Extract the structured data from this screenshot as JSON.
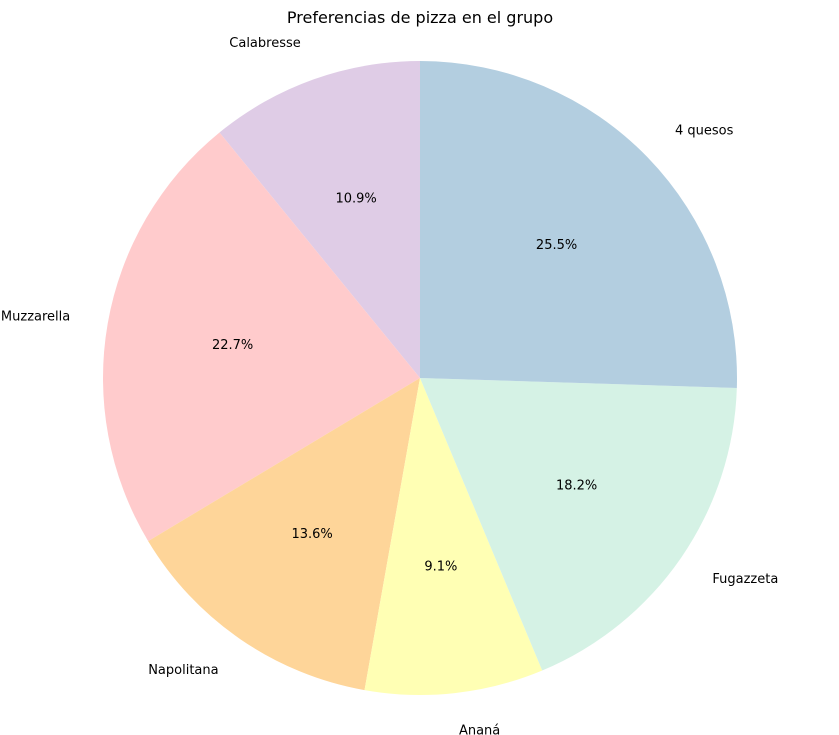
{
  "chart_data": {
    "type": "pie",
    "title": "Preferencias de pizza en el grupo",
    "slices": [
      {
        "label": "Calabresse",
        "percent": 10.9,
        "percent_label": "10.9%",
        "color": "#dfcce6"
      },
      {
        "label": "Muzzarella",
        "percent": 22.7,
        "percent_label": "22.7%",
        "color": "#ffcbcc"
      },
      {
        "label": "Napolitana",
        "percent": 13.6,
        "percent_label": "13.6%",
        "color": "#fed599"
      },
      {
        "label": "Ananá",
        "percent": 9.1,
        "percent_label": "9.1%",
        "color": "#ffffb4"
      },
      {
        "label": "Fugazzeta",
        "percent": 18.2,
        "percent_label": "18.2%",
        "color": "#d5f2e5"
      },
      {
        "label": "4 quesos",
        "percent": 25.5,
        "percent_label": "25.5%",
        "color": "#b3cee0"
      }
    ],
    "direction": "counterclockwise",
    "legend": "none"
  }
}
